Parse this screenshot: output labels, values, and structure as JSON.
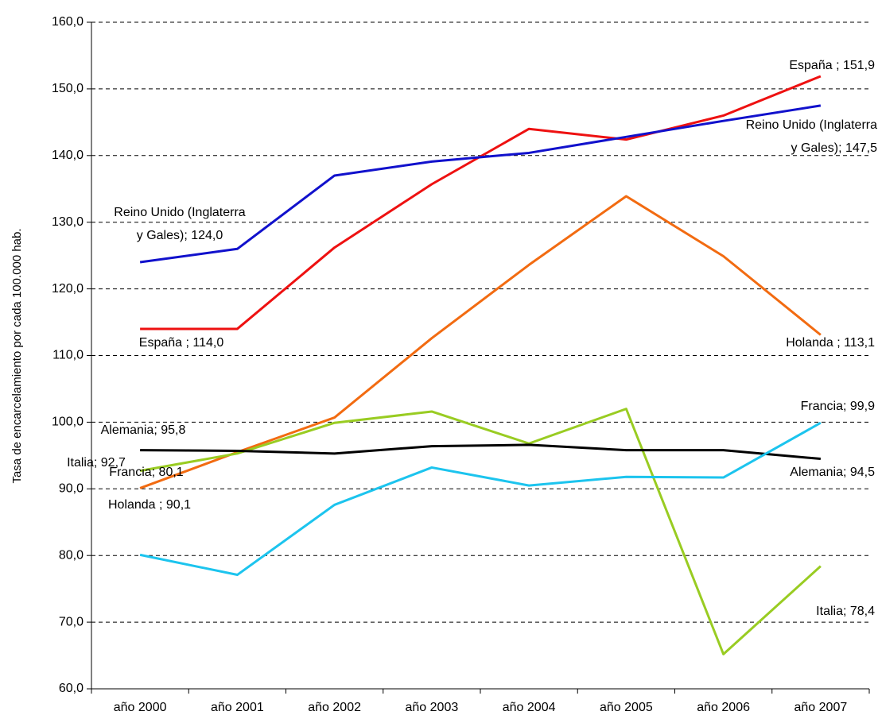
{
  "chart_data": {
    "type": "line",
    "ylabel": "Tasa de encarcelamiento por cada 100.000 hab.",
    "categories": [
      "año 2000",
      "año 2001",
      "año 2002",
      "año 2003",
      "año 2004",
      "año 2005",
      "año 2006",
      "año 2007"
    ],
    "ylim": [
      60,
      160
    ],
    "yticks": [
      {
        "value": 60,
        "label": "60,0"
      },
      {
        "value": 70,
        "label": "70,0"
      },
      {
        "value": 80,
        "label": "80,0"
      },
      {
        "value": 90,
        "label": "90,0"
      },
      {
        "value": 100,
        "label": "100,0"
      },
      {
        "value": 110,
        "label": "110,0"
      },
      {
        "value": 120,
        "label": "120,0"
      },
      {
        "value": 130,
        "label": "130,0"
      },
      {
        "value": 140,
        "label": "140,0"
      },
      {
        "value": 150,
        "label": "150,0"
      },
      {
        "value": 160,
        "label": "160,0"
      }
    ],
    "grid": true,
    "series": [
      {
        "name": "España",
        "color": "#ee1111",
        "values": [
          114.0,
          114.0,
          126.2,
          135.7,
          144.0,
          142.4,
          146.0,
          151.9
        ],
        "value_labels": [
          "España ; 114,0",
          null,
          null,
          null,
          null,
          null,
          null,
          "España ; 151,9"
        ]
      },
      {
        "name": "Reino Unido (Inglaterra y Gales)",
        "color": "#1111cc",
        "values": [
          124.0,
          126.0,
          137.0,
          139.1,
          140.4,
          142.8,
          145.2,
          147.5
        ],
        "value_labels": [
          "Reino Unido (Inglaterra\ny Gales); 124,0",
          null,
          null,
          null,
          null,
          null,
          null,
          "Reino Unido (Inglaterra\ny Gales); 147,5"
        ]
      },
      {
        "name": "Holanda",
        "color": "#f26b11",
        "values": [
          90.1,
          95.5,
          100.7,
          112.6,
          123.6,
          133.9,
          124.9,
          113.1
        ],
        "value_labels": [
          "Holanda ; 90,1",
          null,
          null,
          null,
          null,
          null,
          null,
          "Holanda ; 113,1"
        ]
      },
      {
        "name": "Italia",
        "color": "#99cc22",
        "values": [
          92.7,
          95.3,
          99.9,
          101.6,
          96.8,
          102.0,
          65.2,
          78.4
        ],
        "value_labels": [
          "Italia; 92,7",
          null,
          null,
          null,
          null,
          null,
          null,
          "Italia; 78,4"
        ]
      },
      {
        "name": "Alemania",
        "color": "#000000",
        "values": [
          95.8,
          95.7,
          95.3,
          96.4,
          96.6,
          95.8,
          95.8,
          94.5
        ],
        "value_labels": [
          "Alemania; 95,8",
          null,
          null,
          null,
          null,
          null,
          null,
          "Alemania; 94,5"
        ]
      },
      {
        "name": "Francia",
        "color": "#1cc4ee",
        "values": [
          80.1,
          77.1,
          87.6,
          93.2,
          90.5,
          91.8,
          91.7,
          99.9
        ],
        "value_labels": [
          "Francia; 80,1",
          null,
          null,
          null,
          null,
          null,
          null,
          "Francia; 99,9"
        ]
      }
    ]
  }
}
